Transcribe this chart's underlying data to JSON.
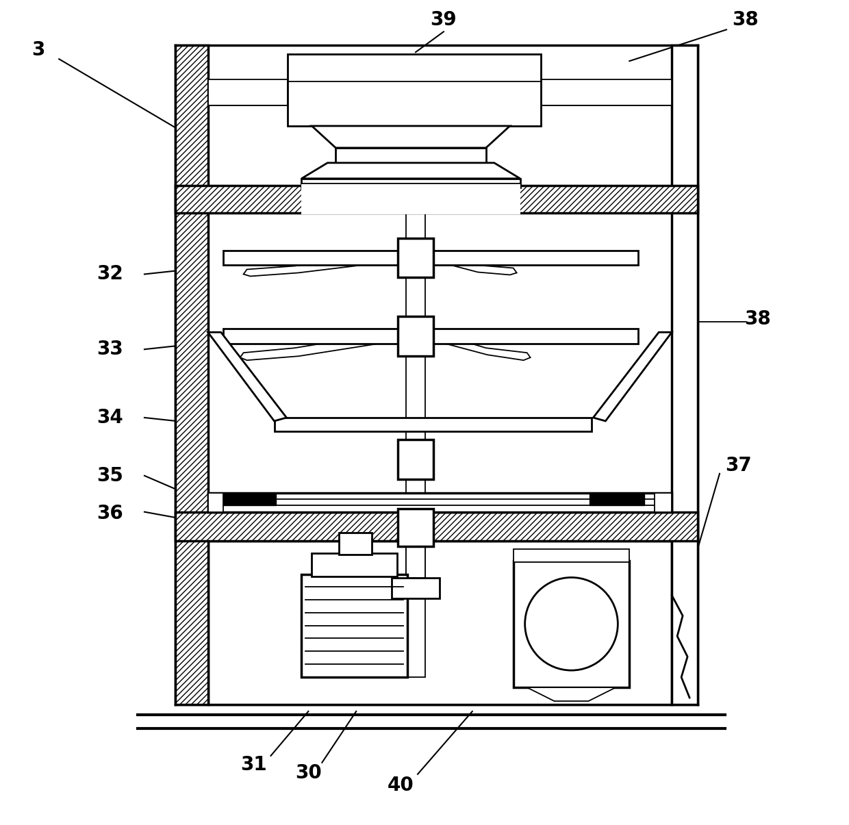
{
  "bg": "#ffffff",
  "fg": "#000000",
  "fig_w": 12.4,
  "fig_h": 12.05,
  "dpi": 100
}
